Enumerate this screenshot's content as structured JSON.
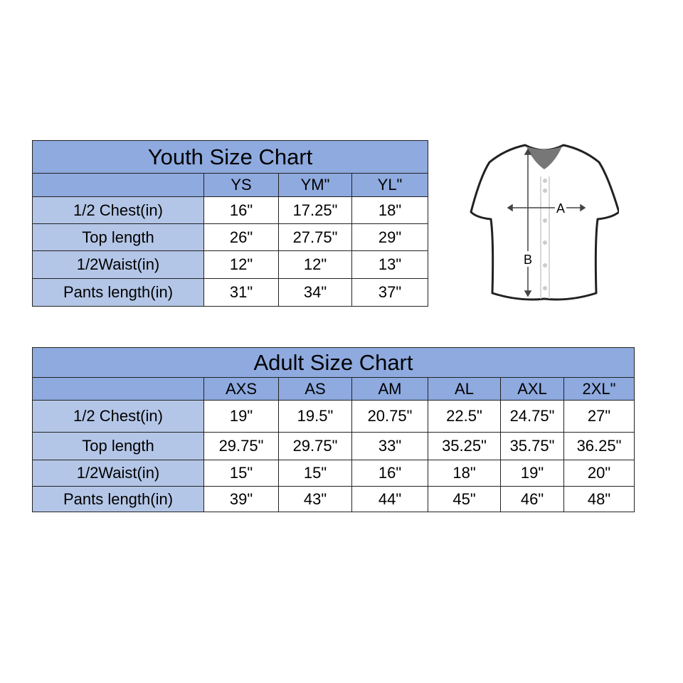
{
  "youth": {
    "title": "Youth Size Chart",
    "sizes": [
      "YS",
      "YM\"",
      "YL\""
    ],
    "rows": [
      {
        "label": "1/2 Chest(in)",
        "values": [
          "16\"",
          "17.25\"",
          "18\""
        ]
      },
      {
        "label": "Top length",
        "values": [
          "26\"",
          "27.75\"",
          "29\""
        ]
      },
      {
        "label": "1/2Waist(in)",
        "values": [
          "12\"",
          "12\"",
          "13\""
        ]
      },
      {
        "label": "Pants length(in)",
        "values": [
          "31\"",
          "34\"",
          "37\""
        ]
      }
    ]
  },
  "adult": {
    "title": "Adult Size Chart",
    "sizes": [
      "AXS",
      "AS",
      "AM",
      "AL",
      "AXL",
      "2XL\""
    ],
    "rows": [
      {
        "label": "1/2 Chest(in)",
        "values": [
          "19\"",
          "19.5\"",
          "20.75\"",
          "22.5\"",
          "24.75\"",
          "27\""
        ]
      },
      {
        "label": "Top length",
        "values": [
          "29.75\"",
          "29.75\"",
          "33\"",
          "35.25\"",
          "35.75\"",
          "36.25\""
        ]
      },
      {
        "label": "1/2Waist(in)",
        "values": [
          "15\"",
          "15\"",
          "16\"",
          "18\"",
          "19\"",
          "20\""
        ]
      },
      {
        "label": "Pants length(in)",
        "values": [
          "39\"",
          "43\"",
          "44\"",
          "45\"",
          "46\"",
          "48\""
        ]
      }
    ]
  },
  "diagram": {
    "label_a": "A",
    "label_b": "B"
  },
  "colors": {
    "header": "#8eaadf",
    "label_column": "#b4c6e7"
  }
}
